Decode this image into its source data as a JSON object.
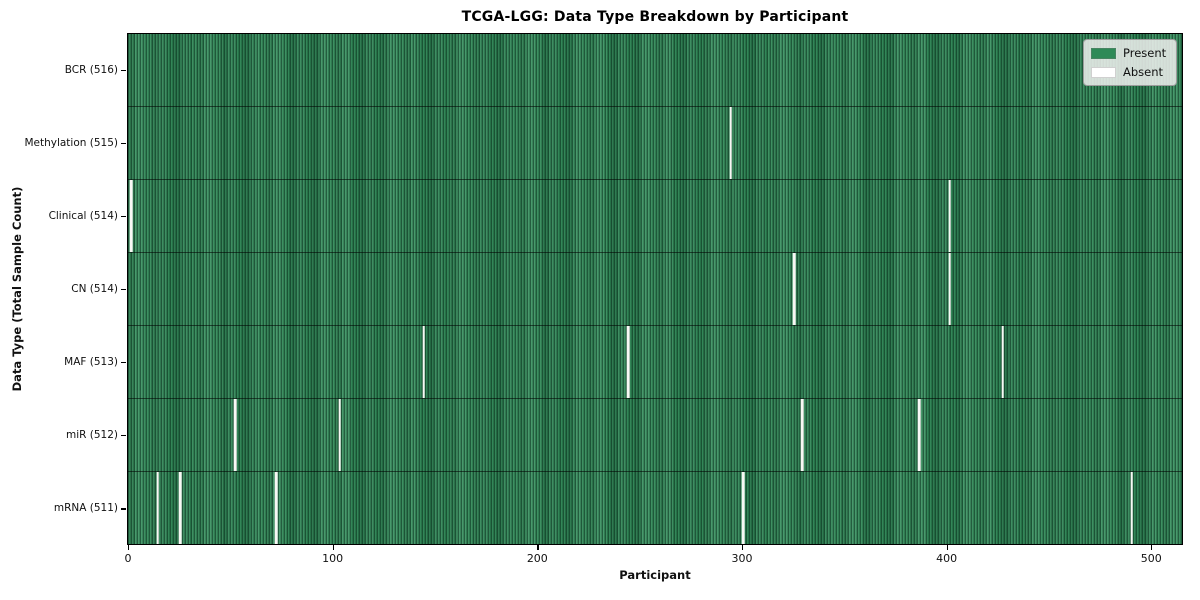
{
  "title": "TCGA-LGG: Data Type Breakdown by Participant",
  "chart_data": {
    "type": "heatmap",
    "subtype": "data-availability-matrix",
    "title": "TCGA-LGG: Data Type Breakdown by Participant",
    "xlabel": "Participant",
    "ylabel": "Data Type (Total Sample Count)",
    "x_ticks": [
      0,
      100,
      200,
      300,
      400,
      500
    ],
    "xlim": [
      0,
      516
    ],
    "n_participants": 516,
    "grid": false,
    "legend": {
      "position": "upper-right",
      "entries": [
        {
          "label": "Present",
          "color": "#2e8a57"
        },
        {
          "label": "Absent",
          "color": "#ffffff"
        }
      ]
    },
    "colors": {
      "present": "#2e8a57",
      "absent": "#f8f8f5",
      "row_divider": "rgba(0,0,0,0.55)",
      "spine": "#000000"
    },
    "rows": [
      {
        "data_type": "BCR",
        "label": "BCR (516)",
        "total_samples": 516,
        "absent_participants": []
      },
      {
        "data_type": "Methylation",
        "label": "Methylation (515)",
        "total_samples": 515,
        "absent_participants": [
          294
        ]
      },
      {
        "data_type": "Clinical",
        "label": "Clinical (514)",
        "total_samples": 514,
        "absent_participants": [
          1,
          401
        ]
      },
      {
        "data_type": "CN",
        "label": "CN (514)",
        "total_samples": 514,
        "absent_participants": [
          325,
          401
        ]
      },
      {
        "data_type": "MAF",
        "label": "MAF (513)",
        "total_samples": 513,
        "absent_participants": [
          144,
          244,
          427
        ]
      },
      {
        "data_type": "miR",
        "label": "miR (512)",
        "total_samples": 512,
        "absent_participants": [
          52,
          103,
          329,
          386
        ]
      },
      {
        "data_type": "mRNA",
        "label": "mRNA (511)",
        "total_samples": 511,
        "absent_participants": [
          14,
          25,
          72,
          300,
          490
        ]
      }
    ]
  }
}
